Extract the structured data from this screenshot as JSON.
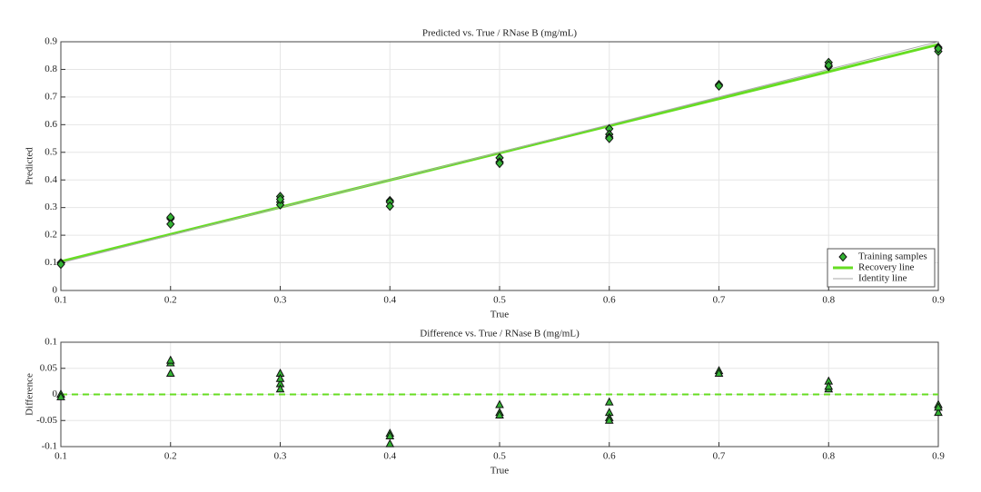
{
  "chart_data": [
    {
      "type": "scatter",
      "title": "Predicted vs. True / RNase B (mg/mL)",
      "x_label": "True",
      "y_label": "Predicted",
      "xlim": [
        0.1,
        0.9
      ],
      "ylim": [
        0,
        0.9
      ],
      "xticks": [
        0.1,
        0.2,
        0.3,
        0.4,
        0.5,
        0.6,
        0.7,
        0.8,
        0.9
      ],
      "yticks": [
        0,
        0.1,
        0.2,
        0.3,
        0.4,
        0.5,
        0.6,
        0.7,
        0.8,
        0.9
      ],
      "grid": true,
      "legend": "lower right",
      "series": [
        {
          "name": "Training samples",
          "kind": "scatter",
          "marker": "diamond",
          "color": "#33b233",
          "x": [
            0.1,
            0.1,
            0.2,
            0.2,
            0.2,
            0.3,
            0.3,
            0.3,
            0.3,
            0.4,
            0.4,
            0.4,
            0.5,
            0.5,
            0.5,
            0.6,
            0.6,
            0.6,
            0.6,
            0.7,
            0.7,
            0.8,
            0.8,
            0.8,
            0.9,
            0.9,
            0.9
          ],
          "values": [
            0.1,
            0.095,
            0.26,
            0.265,
            0.24,
            0.34,
            0.32,
            0.31,
            0.33,
            0.325,
            0.32,
            0.305,
            0.48,
            0.465,
            0.46,
            0.585,
            0.565,
            0.555,
            0.55,
            0.745,
            0.74,
            0.825,
            0.81,
            0.815,
            0.88,
            0.865,
            0.875
          ]
        },
        {
          "name": "Recovery line",
          "kind": "line",
          "color": "#66dd22",
          "width": 3,
          "x": [
            0.1,
            0.9
          ],
          "values": [
            0.105,
            0.89
          ]
        },
        {
          "name": "Identity line",
          "kind": "line",
          "color": "#aaaaaa",
          "width": 1,
          "x": [
            0.1,
            0.9
          ],
          "values": [
            0.1,
            0.9
          ]
        }
      ]
    },
    {
      "type": "scatter",
      "title": "Difference vs. True / RNase B (mg/mL)",
      "x_label": "True",
      "y_label": "Difference",
      "xlim": [
        0.1,
        0.9
      ],
      "ylim": [
        -0.1,
        0.1
      ],
      "xticks": [
        0.1,
        0.2,
        0.3,
        0.4,
        0.5,
        0.6,
        0.7,
        0.8,
        0.9
      ],
      "yticks": [
        -0.1,
        -0.05,
        0,
        0.05,
        0.1
      ],
      "grid": true,
      "series": [
        {
          "kind": "scatter",
          "marker": "triangle",
          "color": "#33b233",
          "x": [
            0.1,
            0.1,
            0.2,
            0.2,
            0.2,
            0.3,
            0.3,
            0.3,
            0.3,
            0.4,
            0.4,
            0.4,
            0.5,
            0.5,
            0.5,
            0.6,
            0.6,
            0.6,
            0.6,
            0.7,
            0.7,
            0.8,
            0.8,
            0.8,
            0.9,
            0.9,
            0.9
          ],
          "values": [
            0,
            -0.005,
            0.06,
            0.065,
            0.04,
            0.04,
            0.02,
            0.01,
            0.03,
            -0.075,
            -0.08,
            -0.095,
            -0.02,
            -0.035,
            -0.04,
            -0.015,
            -0.035,
            -0.045,
            -0.05,
            0.045,
            0.04,
            0.025,
            0.01,
            0.015,
            -0.02,
            -0.035,
            -0.025
          ]
        },
        {
          "kind": "line",
          "dash": true,
          "color": "#66dd22",
          "width": 2,
          "x": [
            0.1,
            0.9
          ],
          "values": [
            0,
            0
          ]
        }
      ]
    }
  ]
}
